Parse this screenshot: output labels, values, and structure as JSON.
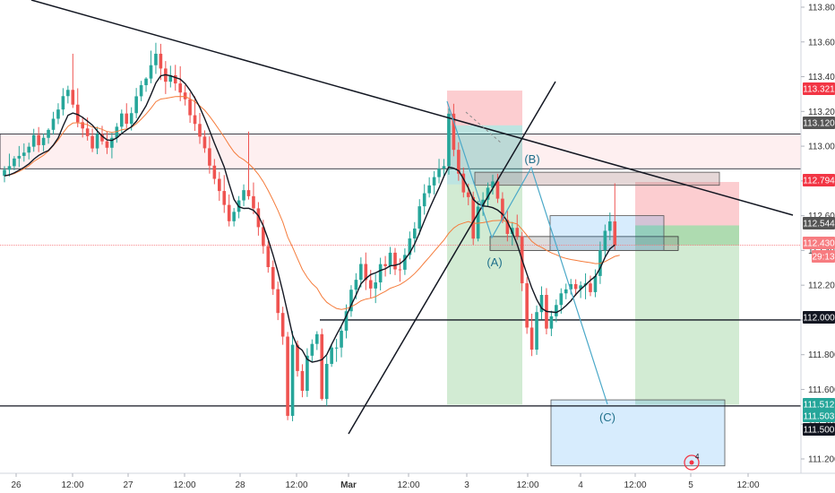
{
  "chart_data": {
    "type": "candlestick",
    "y_axis": {
      "range": [
        111.1,
        113.85
      ],
      "ticks": [
        "113.800",
        "113.600",
        "113.400",
        "113.200",
        "113.000",
        "112.800",
        "112.600",
        "112.400",
        "112.200",
        "112.000",
        "111.800",
        "111.600",
        "111.400",
        "111.200"
      ]
    },
    "x_axis": {
      "ticks": [
        {
          "label": "26",
          "bold": false
        },
        {
          "label": "12:00",
          "bold": false
        },
        {
          "label": "27",
          "bold": false
        },
        {
          "label": "12:00",
          "bold": false
        },
        {
          "label": "28",
          "bold": false
        },
        {
          "label": "12:00",
          "bold": false
        },
        {
          "label": "Mar",
          "bold": true
        },
        {
          "label": "12:00",
          "bold": false
        },
        {
          "label": "3",
          "bold": false
        },
        {
          "label": "12:00",
          "bold": false
        },
        {
          "label": "4",
          "bold": false
        },
        {
          "label": "12:00",
          "bold": false
        },
        {
          "label": "5",
          "bold": false
        },
        {
          "label": "12:00",
          "bold": false
        }
      ]
    },
    "price_labels": [
      {
        "text": "113.321",
        "color": "#f23645"
      },
      {
        "text": "113.120",
        "color": "#555555"
      },
      {
        "text": "112.794",
        "color": "#f23645"
      },
      {
        "text": "112.544",
        "color": "#555555"
      },
      {
        "text": "112.430",
        "color": "#f77c80"
      },
      {
        "text": "29:13",
        "color": "#f77c80"
      },
      {
        "text": "112.000",
        "color": "#131722"
      },
      {
        "text": "111.512",
        "color": "#26a69a"
      },
      {
        "text": "111.503",
        "color": "#26a69a"
      },
      {
        "text": "111.500",
        "color": "#131722"
      }
    ],
    "wave_labels": [
      "(A)",
      "(B)",
      "(C)"
    ],
    "candles": [
      [
        112.829,
        112.885,
        112.792,
        112.864
      ],
      [
        112.864,
        112.957,
        112.826,
        112.885
      ],
      [
        112.885,
        112.943,
        112.861,
        112.929
      ],
      [
        112.929,
        113.001,
        112.88,
        112.944
      ],
      [
        112.944,
        113.016,
        112.911,
        112.963
      ],
      [
        112.963,
        113.02,
        112.924,
        112.997
      ],
      [
        112.997,
        113.1,
        112.968,
        113.064
      ],
      [
        113.064,
        113.11,
        112.966,
        113.006
      ],
      [
        113.006,
        113.073,
        112.971,
        113.048
      ],
      [
        113.048,
        113.103,
        113.014,
        113.094
      ],
      [
        113.094,
        113.198,
        113.066,
        113.158
      ],
      [
        113.158,
        113.247,
        113.127,
        113.211
      ],
      [
        113.211,
        113.334,
        113.177,
        113.288
      ],
      [
        113.288,
        113.348,
        113.246,
        113.324
      ],
      [
        113.324,
        113.532,
        113.22,
        113.239
      ],
      [
        113.239,
        113.333,
        113.109,
        113.138
      ],
      [
        113.138,
        113.17,
        113.05,
        113.102
      ],
      [
        113.102,
        113.165,
        113.032,
        113.058
      ],
      [
        113.058,
        113.101,
        112.966,
        112.987
      ],
      [
        112.987,
        113.112,
        112.954,
        113.069
      ],
      [
        113.069,
        113.117,
        113.009,
        113.028
      ],
      [
        113.028,
        113.083,
        112.955,
        112.991
      ],
      [
        112.991,
        113.077,
        112.93,
        113.048
      ],
      [
        113.048,
        113.133,
        113.02,
        113.112
      ],
      [
        113.112,
        113.211,
        113.077,
        113.188
      ],
      [
        113.188,
        113.247,
        113.104,
        113.129
      ],
      [
        113.129,
        113.224,
        113.09,
        113.19
      ],
      [
        113.19,
        113.335,
        113.16,
        113.287
      ],
      [
        113.287,
        113.376,
        113.259,
        113.351
      ],
      [
        113.351,
        113.397,
        113.313,
        113.389
      ],
      [
        113.389,
        113.55,
        113.362,
        113.466
      ],
      [
        113.466,
        113.595,
        113.416,
        113.532
      ],
      [
        113.532,
        113.589,
        113.381,
        113.447
      ],
      [
        113.447,
        113.49,
        113.3,
        113.371
      ],
      [
        113.371,
        113.463,
        113.338,
        113.408
      ],
      [
        113.408,
        113.468,
        113.319,
        113.361
      ],
      [
        113.361,
        113.46,
        113.259,
        113.309
      ],
      [
        113.309,
        113.352,
        113.234,
        113.27
      ],
      [
        113.27,
        113.309,
        113.134,
        113.178
      ],
      [
        113.178,
        113.287,
        113.088,
        113.128
      ],
      [
        113.128,
        113.191,
        113.013,
        113.055
      ],
      [
        113.055,
        113.091,
        112.962,
        112.988
      ],
      [
        112.988,
        113.056,
        112.842,
        112.888
      ],
      [
        112.888,
        112.926,
        112.781,
        112.812
      ],
      [
        112.812,
        112.852,
        112.685,
        112.742
      ],
      [
        112.742,
        112.834,
        112.616,
        112.662
      ],
      [
        112.662,
        112.722,
        112.538,
        112.568
      ],
      [
        112.568,
        112.644,
        112.538,
        112.622
      ],
      [
        112.622,
        112.713,
        112.585,
        112.688
      ],
      [
        112.688,
        112.78,
        112.655,
        112.747
      ],
      [
        112.747,
        113.084,
        112.693,
        112.712
      ],
      [
        112.712,
        112.791,
        112.609,
        112.642
      ],
      [
        112.642,
        112.678,
        112.485,
        112.534
      ],
      [
        112.534,
        112.576,
        112.381,
        112.425
      ],
      [
        112.425,
        112.453,
        112.272,
        112.304
      ],
      [
        112.304,
        112.342,
        112.144,
        112.177
      ],
      [
        112.177,
        112.221,
        111.999,
        112.04
      ],
      [
        112.04,
        112.076,
        111.857,
        111.904
      ],
      [
        111.904,
        111.931,
        111.423,
        111.448
      ],
      [
        111.448,
        111.936,
        111.417,
        111.857
      ],
      [
        111.857,
        111.881,
        111.674,
        111.706
      ],
      [
        111.706,
        111.745,
        111.555,
        111.592
      ],
      [
        111.592,
        111.837,
        111.557,
        111.794
      ],
      [
        111.794,
        111.888,
        111.758,
        111.862
      ],
      [
        111.862,
        111.935,
        111.827,
        111.918
      ],
      [
        111.918,
        111.95,
        111.536,
        111.545
      ],
      [
        111.545,
        111.794,
        111.505,
        111.747
      ],
      [
        111.747,
        111.856,
        111.73,
        111.841
      ],
      [
        111.841,
        111.891,
        111.759,
        111.841
      ],
      [
        111.841,
        111.967,
        111.785,
        111.938
      ],
      [
        111.938,
        112.089,
        111.894,
        112.05
      ],
      [
        112.05,
        112.2,
        112.018,
        112.174
      ],
      [
        112.174,
        112.269,
        112.12,
        112.231
      ],
      [
        112.231,
        112.36,
        112.187,
        112.322
      ],
      [
        112.322,
        112.388,
        112.172,
        112.229
      ],
      [
        112.229,
        112.288,
        112.126,
        112.181
      ],
      [
        112.181,
        112.266,
        112.097,
        112.216
      ],
      [
        112.216,
        112.358,
        112.17,
        112.321
      ],
      [
        112.321,
        112.368,
        112.25,
        112.31
      ],
      [
        112.31,
        112.42,
        112.263,
        112.387
      ],
      [
        112.387,
        112.414,
        112.258,
        112.291
      ],
      [
        112.291,
        112.354,
        112.22,
        112.289
      ],
      [
        112.289,
        112.412,
        112.259,
        112.374
      ],
      [
        112.374,
        112.509,
        112.349,
        112.469
      ],
      [
        112.469,
        112.563,
        112.389,
        112.526
      ],
      [
        112.526,
        112.695,
        112.49,
        112.654
      ],
      [
        112.654,
        112.781,
        112.606,
        112.729
      ],
      [
        112.729,
        112.821,
        112.705,
        112.774
      ],
      [
        112.774,
        112.856,
        112.722,
        112.822
      ],
      [
        112.822,
        112.927,
        112.786,
        112.871
      ],
      [
        112.871,
        112.926,
        112.83,
        112.885
      ],
      [
        112.885,
        113.218,
        112.836,
        113.187
      ],
      [
        113.187,
        113.244,
        112.942,
        112.979
      ],
      [
        112.979,
        113.023,
        112.801,
        112.842
      ],
      [
        112.842,
        112.877,
        112.705,
        112.734
      ],
      [
        112.734,
        112.784,
        112.66,
        112.707
      ],
      [
        112.707,
        112.738,
        112.432,
        112.468
      ],
      [
        112.468,
        112.686,
        112.452,
        112.652
      ],
      [
        112.652,
        112.735,
        112.599,
        112.692
      ],
      [
        112.692,
        112.791,
        112.651,
        112.761
      ],
      [
        112.761,
        112.836,
        112.722,
        112.797
      ],
      [
        112.797,
        112.841,
        112.673,
        112.698
      ],
      [
        112.698,
        112.735,
        112.557,
        112.575
      ],
      [
        112.575,
        112.628,
        112.452,
        112.495
      ],
      [
        112.495,
        112.564,
        112.428,
        112.53
      ],
      [
        112.53,
        112.606,
        112.461,
        112.481
      ],
      [
        112.481,
        112.507,
        112.166,
        112.211
      ],
      [
        112.211,
        112.246,
        111.92,
        111.956
      ],
      [
        111.956,
        112.036,
        111.792,
        111.829
      ],
      [
        111.829,
        112.083,
        111.799,
        112.045
      ],
      [
        112.045,
        112.193,
        112.002,
        112.144
      ],
      [
        112.144,
        112.183,
        111.917,
        111.95
      ],
      [
        111.95,
        112.053,
        111.907,
        112.021
      ],
      [
        112.021,
        112.118,
        111.987,
        112.086
      ],
      [
        112.086,
        112.182,
        112.036,
        112.153
      ],
      [
        112.153,
        112.209,
        112.119,
        112.176
      ],
      [
        112.176,
        112.236,
        112.146,
        112.206
      ],
      [
        112.206,
        112.234,
        112.139,
        112.178
      ],
      [
        112.178,
        112.222,
        112.126,
        112.199
      ],
      [
        112.199,
        112.268,
        112.119,
        112.21
      ],
      [
        112.21,
        112.255,
        112.137,
        112.16
      ],
      [
        112.16,
        112.291,
        112.131,
        112.253
      ],
      [
        112.253,
        112.451,
        112.207,
        112.401
      ],
      [
        112.401,
        112.549,
        112.362,
        112.513
      ],
      [
        112.513,
        112.618,
        112.459,
        112.567
      ],
      [
        112.567,
        112.786,
        112.403,
        112.43
      ]
    ],
    "ema_black": [
      112.829,
      112.835,
      112.846,
      112.862,
      112.878,
      112.898,
      112.925,
      112.947,
      112.962,
      112.975,
      113.006,
      113.048,
      113.116,
      113.178,
      113.191,
      113.182,
      113.166,
      113.144,
      113.121,
      113.088,
      113.058,
      113.036,
      113.033,
      113.048,
      113.072,
      113.094,
      113.112,
      113.143,
      113.186,
      113.233,
      113.296,
      113.364,
      113.405,
      113.411,
      113.405,
      113.395,
      113.386,
      113.36,
      113.322,
      113.276,
      113.224,
      113.158,
      113.09,
      113.018,
      112.95,
      112.88,
      112.783,
      112.694,
      112.651,
      112.642,
      112.643,
      112.631,
      112.6,
      112.541,
      112.464,
      112.373,
      112.276,
      112.162,
      112.04,
      111.912,
      111.847,
      111.825,
      111.773,
      111.757,
      111.763,
      111.771,
      111.8,
      111.86,
      111.914,
      111.967,
      112.023,
      112.084,
      112.143,
      112.208,
      112.238,
      112.261,
      112.271,
      112.285,
      112.294,
      112.311,
      112.315,
      112.323,
      112.348,
      112.386,
      112.437,
      112.502,
      112.571,
      112.638,
      112.7,
      112.76,
      112.826,
      112.88,
      112.873,
      112.859,
      112.812,
      112.759,
      112.694,
      112.668,
      112.656,
      112.653,
      112.646,
      112.632,
      112.609,
      112.565,
      112.504,
      112.434,
      112.347,
      112.264,
      112.184,
      112.117,
      112.067,
      112.049,
      112.046,
      112.043,
      112.058,
      112.082,
      112.11,
      112.146,
      112.176,
      112.202,
      112.228,
      112.251,
      112.299,
      112.361,
      112.409,
      112.432
    ],
    "ema_orange": [
      112.829,
      112.833,
      112.842,
      112.855,
      112.87,
      112.888,
      112.912,
      112.929,
      112.948,
      112.972,
      113.003,
      113.036,
      113.077,
      113.114,
      113.133,
      113.135,
      113.131,
      113.123,
      113.11,
      113.106,
      113.097,
      113.084,
      113.079,
      113.084,
      113.095,
      113.099,
      113.108,
      113.129,
      113.155,
      113.185,
      113.218,
      113.256,
      113.271,
      113.275,
      113.28,
      113.285,
      113.286,
      113.285,
      113.273,
      113.255,
      113.232,
      113.207,
      113.172,
      113.134,
      113.093,
      113.052,
      113.007,
      112.967,
      112.939,
      112.922,
      112.9,
      112.872,
      112.838,
      112.795,
      112.745,
      112.689,
      112.63,
      112.563,
      112.478,
      112.418,
      112.354,
      112.291,
      112.245,
      112.209,
      112.183,
      112.135,
      112.102,
      112.082,
      112.066,
      112.06,
      112.065,
      112.076,
      112.091,
      112.11,
      112.12,
      112.125,
      112.134,
      112.15,
      112.164,
      112.182,
      112.192,
      112.203,
      112.221,
      112.242,
      112.267,
      112.297,
      112.33,
      112.362,
      112.395,
      112.428,
      112.46,
      112.499,
      112.529,
      112.548,
      112.558,
      112.566,
      112.555,
      112.557,
      112.56,
      112.565,
      112.571,
      112.572,
      112.573,
      112.563,
      112.56,
      112.552,
      112.521,
      112.487,
      112.452,
      112.431,
      112.418,
      112.401,
      112.386,
      112.375,
      112.363,
      112.354,
      112.348,
      112.343,
      112.338,
      112.334,
      112.33,
      112.324,
      112.325,
      112.336,
      112.351,
      112.366,
      112.372
    ]
  }
}
